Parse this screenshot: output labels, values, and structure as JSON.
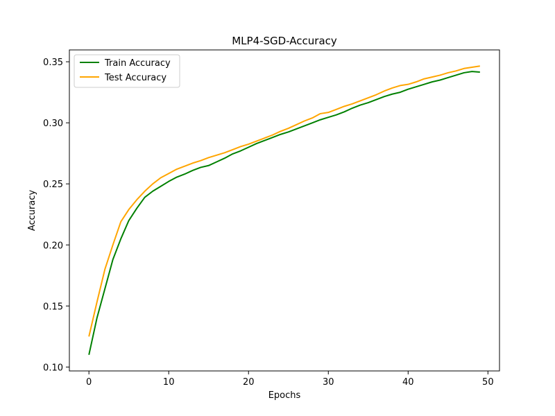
{
  "chart_data": {
    "type": "line",
    "title": "MLP4-SGD-Accuracy",
    "xlabel": "Epochs",
    "ylabel": "Accuracy",
    "xlim": [
      -2.45,
      51.45
    ],
    "ylim": [
      0.0968,
      0.3597
    ],
    "xticks": [
      0,
      10,
      20,
      30,
      40,
      50
    ],
    "xtick_labels": [
      "0",
      "10",
      "20",
      "30",
      "40",
      "50"
    ],
    "yticks": [
      0.1,
      0.15,
      0.2,
      0.25,
      0.3,
      0.35
    ],
    "ytick_labels": [
      "0.10",
      "0.15",
      "0.20",
      "0.25",
      "0.30",
      "0.35"
    ],
    "grid": false,
    "legend_position": "upper-left",
    "x": [
      0,
      1,
      2,
      3,
      4,
      5,
      6,
      7,
      8,
      9,
      10,
      11,
      12,
      13,
      14,
      15,
      16,
      17,
      18,
      19,
      20,
      21,
      22,
      23,
      24,
      25,
      26,
      27,
      28,
      29,
      30,
      31,
      32,
      33,
      34,
      35,
      36,
      37,
      38,
      39,
      40,
      41,
      42,
      43,
      44,
      45,
      46,
      47,
      48,
      49
    ],
    "series": [
      {
        "name": "Train Accuracy",
        "color": "#008000",
        "values": [
          0.11,
          0.14,
          0.164,
          0.188,
          0.205,
          0.22,
          0.23,
          0.239,
          0.244,
          0.248,
          0.252,
          0.2555,
          0.258,
          0.261,
          0.2635,
          0.265,
          0.268,
          0.271,
          0.2745,
          0.277,
          0.28,
          0.283,
          0.2855,
          0.288,
          0.2905,
          0.2925,
          0.295,
          0.2975,
          0.3,
          0.3025,
          0.3045,
          0.3065,
          0.309,
          0.312,
          0.3145,
          0.3165,
          0.319,
          0.3215,
          0.3235,
          0.325,
          0.3275,
          0.3295,
          0.3315,
          0.3335,
          0.335,
          0.337,
          0.339,
          0.341,
          0.342,
          0.3415
        ]
      },
      {
        "name": "Test Accuracy",
        "color": "#ffa500",
        "values": [
          0.125,
          0.153,
          0.18,
          0.2,
          0.219,
          0.229,
          0.237,
          0.244,
          0.25,
          0.255,
          0.2585,
          0.262,
          0.2645,
          0.267,
          0.269,
          0.2715,
          0.2735,
          0.2755,
          0.278,
          0.2805,
          0.2825,
          0.285,
          0.2875,
          0.29,
          0.293,
          0.2955,
          0.2985,
          0.3015,
          0.304,
          0.3075,
          0.3085,
          0.311,
          0.3135,
          0.3155,
          0.318,
          0.3205,
          0.323,
          0.326,
          0.3285,
          0.3305,
          0.3315,
          0.3335,
          0.336,
          0.3375,
          0.339,
          0.341,
          0.3425,
          0.3445,
          0.3455,
          0.3465
        ]
      }
    ]
  }
}
